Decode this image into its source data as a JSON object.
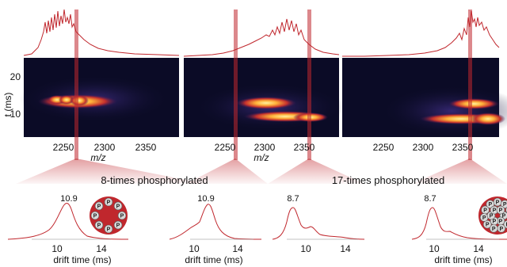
{
  "colors": {
    "accent": "#c0272d",
    "trace": "#c0272d",
    "heatmap_bg": "#0b0b26",
    "band_hot": "#ffd34a",
    "band_warm": "#d5372d",
    "band_cool": "#6a2c8c"
  },
  "heatmap": {
    "y_axis_label": "t (ms)",
    "y_ticks": [
      "20",
      "10"
    ],
    "x_ticks": [
      "2250",
      "2300",
      "2350"
    ],
    "x_axis_label": "m/z"
  },
  "captions": {
    "left": "8-times phosphorylated",
    "right": "17-times phosphorylated"
  },
  "peaks": [
    "10.9",
    "10.9",
    "8.7",
    "8.7"
  ],
  "drift": {
    "x_axis_label": "drift time (ms)",
    "x_ticks": [
      "10",
      "14"
    ]
  },
  "phospho_symbol": "P"
}
